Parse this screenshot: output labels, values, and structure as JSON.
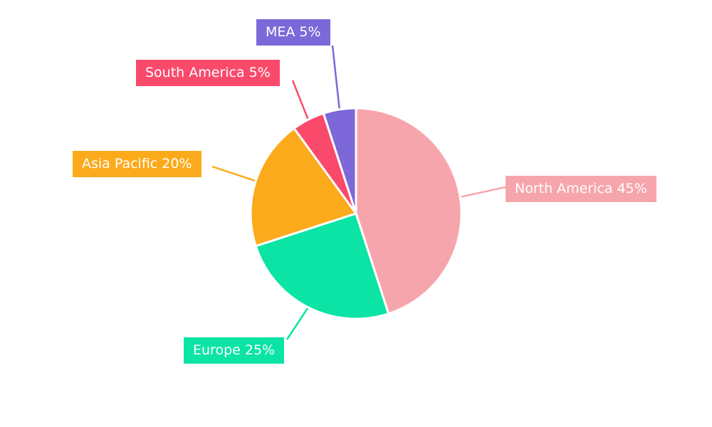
{
  "chart_data": {
    "type": "pie",
    "title": "",
    "labels": [
      "North America",
      "Europe",
      "Asia Pacific",
      "South America",
      "MEA"
    ],
    "values": [
      45,
      25,
      20,
      5,
      5
    ],
    "unit": "%",
    "colors": [
      "#F7A5AC",
      "#0BE4A4",
      "#FBAA1B",
      "#FA4A6B",
      "#7C68D8"
    ],
    "label_texts": [
      "North America 45%",
      "Europe 25%",
      "Asia Pacific 20%",
      "South America 5%",
      "MEA 5%"
    ],
    "direction": "clockwise",
    "start_angle": "top",
    "legend_position": "none",
    "background": "#ffffff"
  }
}
